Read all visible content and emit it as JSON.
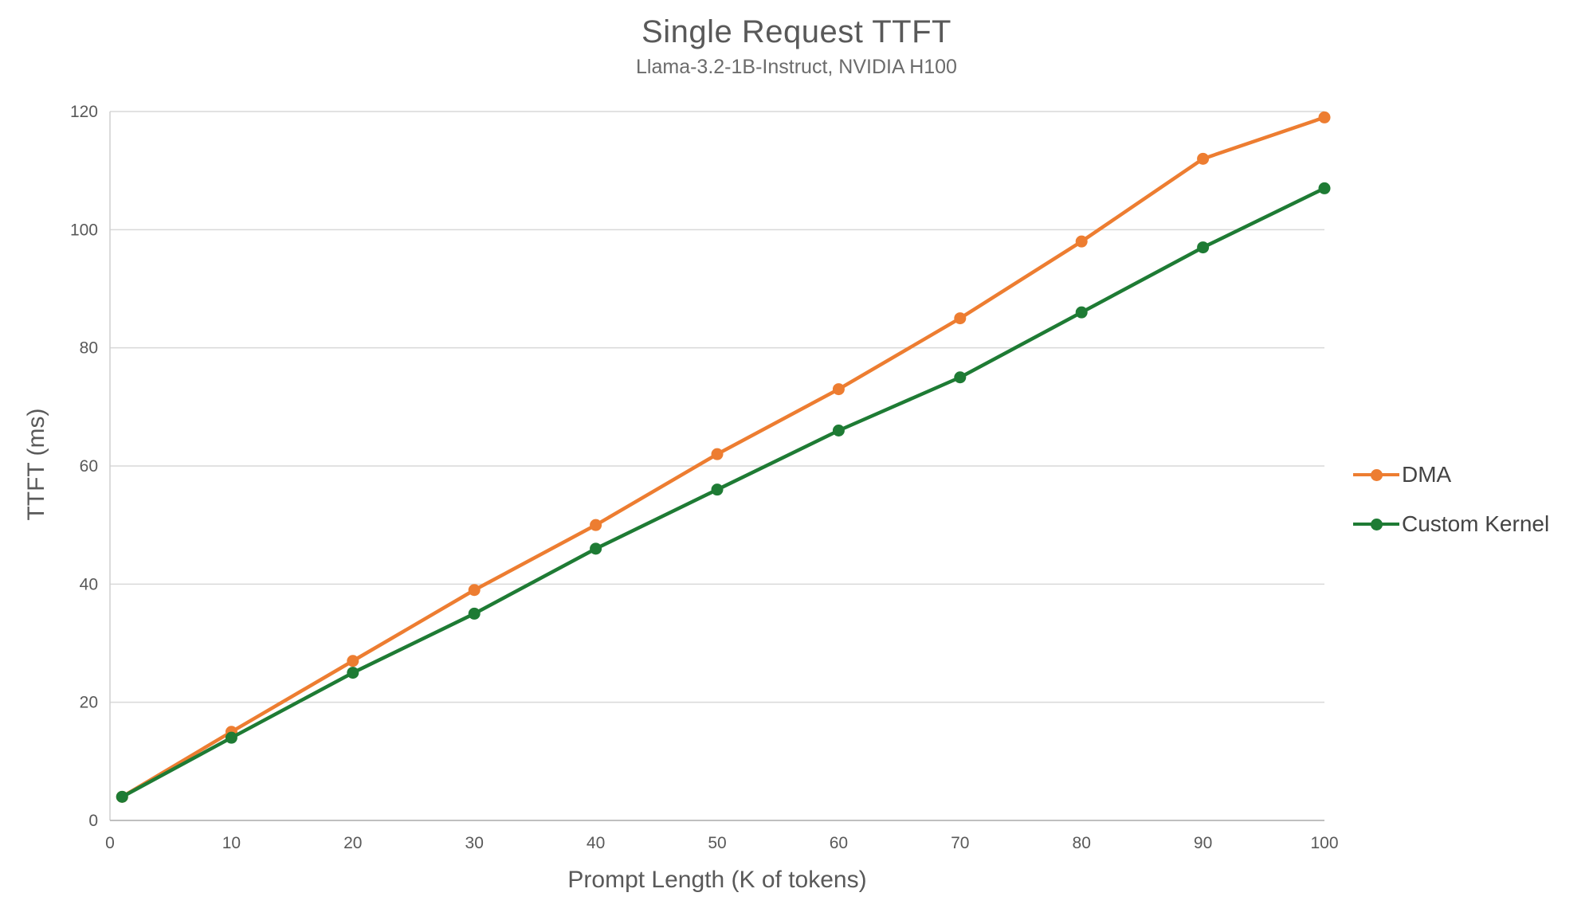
{
  "chart_data": {
    "type": "line",
    "title": "Single Request TTFT",
    "subtitle": "Llama-3.2-1B-Instruct, NVIDIA H100",
    "xlabel": "Prompt Length (K of tokens)",
    "ylabel": "TTFT (ms)",
    "x": [
      1,
      10,
      20,
      30,
      40,
      50,
      60,
      70,
      80,
      90,
      100
    ],
    "series": [
      {
        "name": "DMA",
        "color": "#ED7D31",
        "values": [
          4,
          15,
          27,
          39,
          50,
          62,
          73,
          85,
          98,
          112,
          119
        ]
      },
      {
        "name": "Custom Kernel",
        "color": "#1E7B34",
        "values": [
          4,
          14,
          25,
          35,
          46,
          56,
          66,
          75,
          86,
          97,
          107
        ]
      }
    ],
    "xticks": [
      0,
      10,
      20,
      30,
      40,
      50,
      60,
      70,
      80,
      90,
      100
    ],
    "yticks": [
      0,
      20,
      40,
      60,
      80,
      100,
      120
    ],
    "xlim": [
      0,
      100
    ],
    "ylim": [
      0,
      120
    ],
    "grid": "horizontal",
    "legend_position": "right",
    "colors": {
      "gridline": "#D9D9D9",
      "axis_line": "#BFBFBF",
      "text": "#595959"
    }
  }
}
